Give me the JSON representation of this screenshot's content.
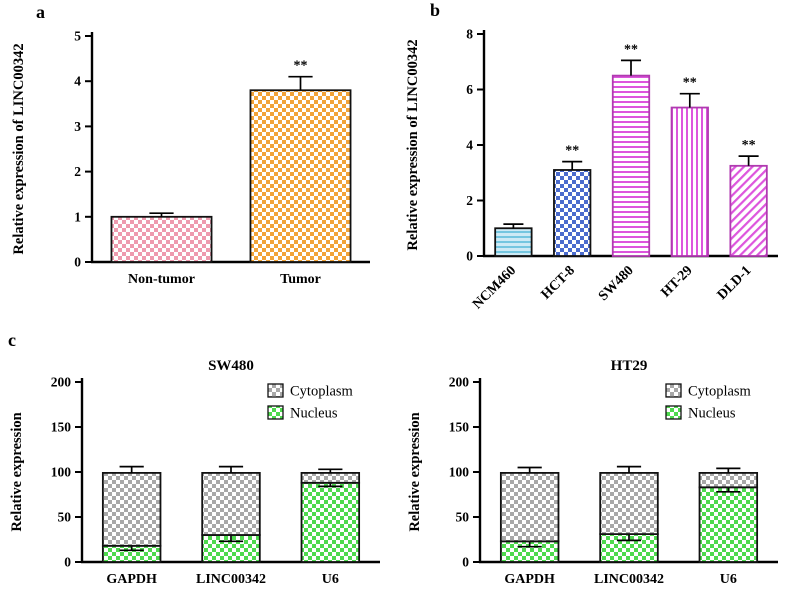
{
  "figure": {
    "panel_labels": {
      "a": "a",
      "b": "b",
      "c": "c"
    }
  },
  "chart_data": [
    {
      "id": "chart-a",
      "type": "bar",
      "title": "",
      "ylabel": "Relative expression of LINC00342",
      "categories": [
        "Non-tumor",
        "Tumor"
      ],
      "values": [
        1.0,
        3.8
      ],
      "errors": [
        0.08,
        0.3
      ],
      "annotations": [
        "",
        "**"
      ],
      "ylim": [
        0,
        5
      ],
      "ytick_step": 1,
      "rotate_labels": false,
      "fills": [
        {
          "pattern": "checker",
          "color": "#ee9aae",
          "bg": "#ffffff",
          "stroke": "#111111"
        },
        {
          "pattern": "checker",
          "color": "#f2a338",
          "bg": "#ffffff",
          "stroke": "#111111"
        }
      ],
      "layout": {
        "margins": {
          "l": 86,
          "r": 18,
          "t": 36,
          "b": 56
        },
        "bar_frac": 0.72
      }
    },
    {
      "id": "chart-b",
      "type": "bar",
      "title": "",
      "ylabel": "Relative expression of LINC00342",
      "categories": [
        "NCM460",
        "HCT-8",
        "SW480",
        "HT-29",
        "DLD-1"
      ],
      "values": [
        1.0,
        3.1,
        6.5,
        5.35,
        3.25
      ],
      "errors": [
        0.15,
        0.3,
        0.55,
        0.5,
        0.35
      ],
      "annotations": [
        "",
        "**",
        "**",
        "**",
        "**"
      ],
      "ylim": [
        0,
        8
      ],
      "ytick_step": 2,
      "rotate_labels": true,
      "fills": [
        {
          "pattern": "hlines",
          "color": "#74c6e0",
          "bg": "#cdeaf5",
          "stroke": "#111111"
        },
        {
          "pattern": "checker",
          "color": "#4a6bcd",
          "bg": "#ffffff",
          "stroke": "#111111"
        },
        {
          "pattern": "hlines",
          "color": "#dd55dd",
          "bg": "#ffffff",
          "stroke": "#b03ab0"
        },
        {
          "pattern": "vlines",
          "color": "#dd55dd",
          "bg": "#ffffff",
          "stroke": "#b03ab0"
        },
        {
          "pattern": "dlines",
          "color": "#dd55dd",
          "bg": "#ffffff",
          "stroke": "#b03ab0"
        }
      ],
      "layout": {
        "margins": {
          "l": 84,
          "r": 14,
          "t": 34,
          "b": 84
        },
        "bar_frac": 0.62
      }
    },
    {
      "id": "chart-c1",
      "type": "stacked",
      "title": "SW480",
      "ylabel": "Relative expression",
      "categories": [
        "GAPDH",
        "LINC00342",
        "U6"
      ],
      "series": [
        {
          "name": "Nucleus",
          "values": [
            18,
            30,
            88
          ],
          "errors": [
            5,
            7,
            4
          ],
          "fill": {
            "pattern": "checker",
            "color": "#4ed94e",
            "bg": "#ffffff",
            "stroke": "#111111"
          }
        },
        {
          "name": "Cytoplasm",
          "values": [
            81,
            69,
            11
          ],
          "errors": [
            7,
            7,
            4
          ],
          "fill": {
            "pattern": "checker",
            "color": "#a8a8a8",
            "bg": "#ffffff",
            "stroke": "#111111"
          }
        }
      ],
      "ylim": [
        0,
        200
      ],
      "ytick_step": 50,
      "rotate_labels": false,
      "legend": {
        "position": "top-right"
      },
      "layout": {
        "margins": {
          "l": 78,
          "r": 12,
          "t": 34,
          "b": 46
        },
        "bar_frac": 0.58
      }
    },
    {
      "id": "chart-c2",
      "type": "stacked",
      "title": "HT29",
      "ylabel": "Relative expression",
      "categories": [
        "GAPDH",
        "LINC00342",
        "U6"
      ],
      "series": [
        {
          "name": "Nucleus",
          "values": [
            23,
            31,
            83
          ],
          "errors": [
            6,
            7,
            5
          ],
          "fill": {
            "pattern": "checker",
            "color": "#4ed94e",
            "bg": "#ffffff",
            "stroke": "#111111"
          }
        },
        {
          "name": "Cytoplasm",
          "values": [
            76,
            68,
            16
          ],
          "errors": [
            6,
            7,
            5
          ],
          "fill": {
            "pattern": "checker",
            "color": "#a8a8a8",
            "bg": "#ffffff",
            "stroke": "#111111"
          }
        }
      ],
      "ylim": [
        0,
        200
      ],
      "ytick_step": 50,
      "rotate_labels": false,
      "legend": {
        "position": "top-right"
      },
      "layout": {
        "margins": {
          "l": 78,
          "r": 12,
          "t": 34,
          "b": 46
        },
        "bar_frac": 0.58
      }
    }
  ]
}
